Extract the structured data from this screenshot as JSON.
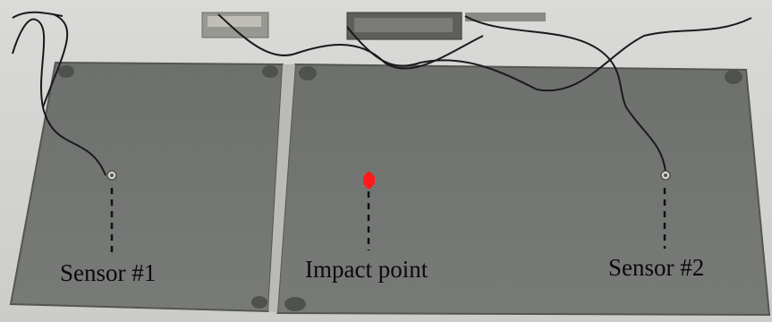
{
  "labels": {
    "sensor1": "Sensor #1",
    "impact": "Impact point",
    "sensor2": "Sensor #2"
  },
  "colors": {
    "impact_marker": "#ff1a1a",
    "plate": "#6e716e",
    "table": "#d9d9d7"
  }
}
